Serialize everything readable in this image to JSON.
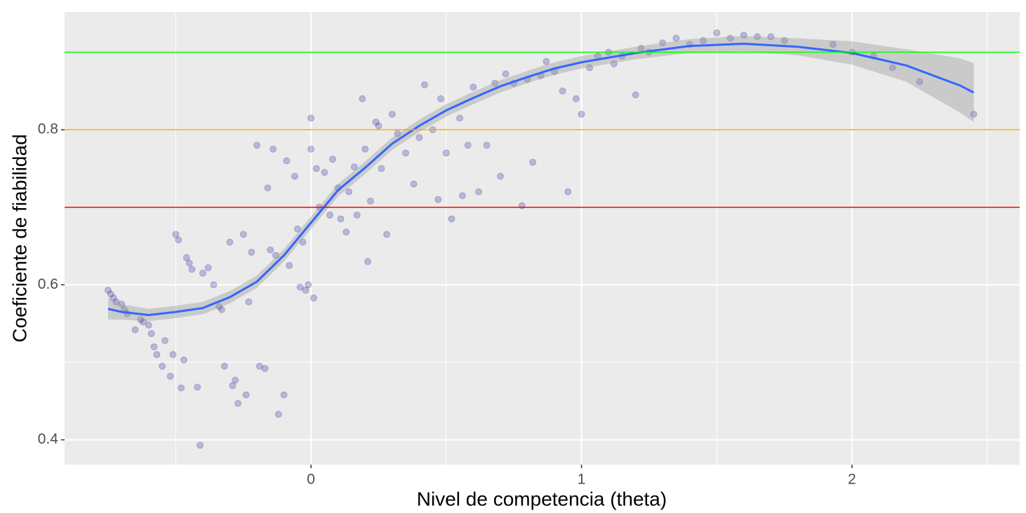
{
  "chart_data": {
    "type": "scatter",
    "x_label": "Nivel de competencia (theta)",
    "y_label": "Coeficiente de fiabilidad",
    "xlim": [
      -0.911,
      2.62
    ],
    "ylim": [
      0.368,
      0.952
    ],
    "xticks": [
      0,
      1,
      2
    ],
    "yticks": [
      0.4,
      0.6,
      0.8
    ],
    "x_minor_grid": [
      -0.5,
      0.5,
      1.5,
      2.5
    ],
    "y_minor_grid": [
      0.5,
      0.7,
      0.9
    ],
    "grid": true,
    "point_color": "#00008B",
    "x": [
      -0.75,
      -0.74,
      -0.73,
      -0.72,
      -0.7,
      -0.69,
      -0.68,
      -0.65,
      -0.63,
      -0.62,
      -0.6,
      -0.59,
      -0.58,
      -0.57,
      -0.55,
      -0.54,
      -0.52,
      -0.51,
      -0.5,
      -0.49,
      -0.48,
      -0.47,
      -0.46,
      -0.45,
      -0.44,
      -0.42,
      -0.41,
      -0.4,
      -0.38,
      -0.36,
      -0.34,
      -0.33,
      -0.32,
      -0.3,
      -0.29,
      -0.28,
      -0.27,
      -0.25,
      -0.24,
      -0.23,
      -0.22,
      -0.2,
      -0.19,
      -0.17,
      -0.16,
      -0.15,
      -0.14,
      -0.13,
      -0.12,
      -0.1,
      -0.09,
      -0.08,
      -0.06,
      -0.05,
      -0.04,
      -0.03,
      -0.02,
      -0.01,
      0,
      0.0,
      0.01,
      0.02,
      0.03,
      0.05,
      0.07,
      0.08,
      0.1,
      0.11,
      0.13,
      0.14,
      0.16,
      0.17,
      0.19,
      0.2,
      0.21,
      0.22,
      0.24,
      0.25,
      0.26,
      0.28,
      0.3,
      0.32,
      0.35,
      0.38,
      0.4,
      0.42,
      0.45,
      0.47,
      0.48,
      0.5,
      0.52,
      0.55,
      0.56,
      0.58,
      0.6,
      0.62,
      0.65,
      0.68,
      0.7,
      0.72,
      0.75,
      0.78,
      0.8,
      0.82,
      0.85,
      0.87,
      0.9,
      0.93,
      0.95,
      0.98,
      1.0,
      1.03,
      1.06,
      1.1,
      1.12,
      1.15,
      1.2,
      1.22,
      1.25,
      1.3,
      1.35,
      1.4,
      1.45,
      1.5,
      1.55,
      1.6,
      1.65,
      1.7,
      1.75,
      1.93,
      2.0,
      2.08,
      2.15,
      2.25,
      2.45
    ],
    "values": [
      0.593,
      0.588,
      0.583,
      0.578,
      0.575,
      0.568,
      0.563,
      0.542,
      0.555,
      0.552,
      0.548,
      0.537,
      0.52,
      0.51,
      0.495,
      0.528,
      0.482,
      0.51,
      0.665,
      0.658,
      0.467,
      0.503,
      0.635,
      0.628,
      0.62,
      0.468,
      0.393,
      0.615,
      0.622,
      0.6,
      0.572,
      0.568,
      0.495,
      0.655,
      0.47,
      0.477,
      0.447,
      0.665,
      0.458,
      0.578,
      0.642,
      0.78,
      0.495,
      0.492,
      0.725,
      0.645,
      0.775,
      0.638,
      0.433,
      0.458,
      0.76,
      0.625,
      0.74,
      0.672,
      0.597,
      0.655,
      0.593,
      0.6,
      0.775,
      0.815,
      0.583,
      0.75,
      0.7,
      0.745,
      0.69,
      0.762,
      0.725,
      0.685,
      0.668,
      0.72,
      0.752,
      0.69,
      0.84,
      0.775,
      0.63,
      0.708,
      0.81,
      0.805,
      0.75,
      0.665,
      0.82,
      0.795,
      0.77,
      0.73,
      0.79,
      0.858,
      0.8,
      0.71,
      0.84,
      0.77,
      0.685,
      0.815,
      0.715,
      0.78,
      0.855,
      0.72,
      0.78,
      0.86,
      0.74,
      0.872,
      0.86,
      0.702,
      0.865,
      0.758,
      0.87,
      0.888,
      0.875,
      0.85,
      0.72,
      0.84,
      0.82,
      0.88,
      0.895,
      0.9,
      0.885,
      0.895,
      0.845,
      0.905,
      0.9,
      0.912,
      0.918,
      0.91,
      0.915,
      0.925,
      0.918,
      0.922,
      0.92,
      0.92,
      0.915,
      0.91,
      0.9,
      0.895,
      0.88,
      0.862,
      0.82
    ],
    "smooth": {
      "color": "#3366FF",
      "x": [
        -0.75,
        -0.7,
        -0.6,
        -0.5,
        -0.4,
        -0.3,
        -0.2,
        -0.1,
        0,
        0.1,
        0.2,
        0.3,
        0.4,
        0.5,
        0.6,
        0.7,
        0.8,
        0.9,
        1.0,
        1.2,
        1.4,
        1.6,
        1.8,
        2.0,
        2.2,
        2.4,
        2.45
      ],
      "y": [
        0.569,
        0.565,
        0.561,
        0.565,
        0.57,
        0.584,
        0.604,
        0.638,
        0.68,
        0.722,
        0.751,
        0.782,
        0.805,
        0.825,
        0.841,
        0.856,
        0.868,
        0.879,
        0.887,
        0.899,
        0.908,
        0.911,
        0.907,
        0.899,
        0.883,
        0.857,
        0.848
      ],
      "lower": [
        0.555,
        0.555,
        0.553,
        0.557,
        0.562,
        0.576,
        0.596,
        0.63,
        0.672,
        0.714,
        0.743,
        0.774,
        0.797,
        0.817,
        0.833,
        0.848,
        0.86,
        0.871,
        0.879,
        0.891,
        0.899,
        0.901,
        0.896,
        0.884,
        0.862,
        0.822,
        0.81
      ],
      "upper": [
        0.583,
        0.575,
        0.569,
        0.573,
        0.578,
        0.592,
        0.612,
        0.646,
        0.688,
        0.73,
        0.759,
        0.79,
        0.813,
        0.833,
        0.849,
        0.864,
        0.876,
        0.887,
        0.895,
        0.907,
        0.917,
        0.921,
        0.918,
        0.914,
        0.904,
        0.892,
        0.886
      ]
    },
    "hlines": [
      {
        "value": 0.9,
        "color": "#00FF00"
      },
      {
        "value": 0.8,
        "color": "#FFA500"
      },
      {
        "value": 0.7,
        "color": "#FF0000"
      }
    ]
  }
}
